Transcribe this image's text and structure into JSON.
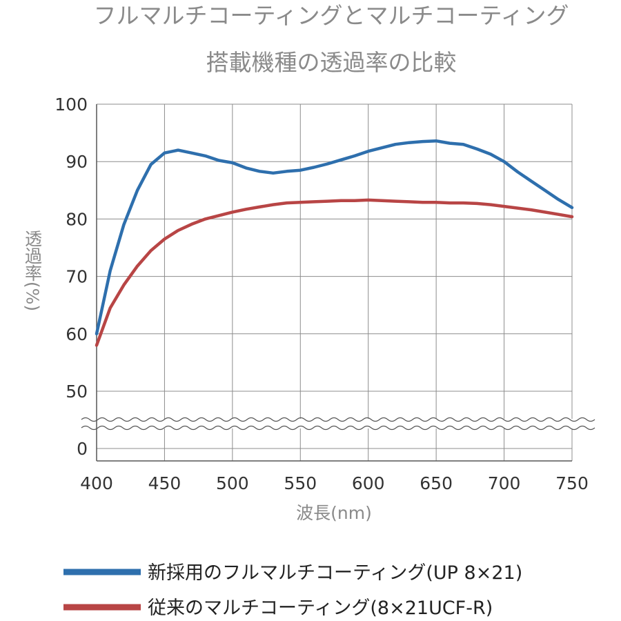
{
  "chart_data": {
    "type": "line",
    "title": "フルマルチコーティングとマルチコーティング",
    "subtitle": "搭載機種の透過率の比較",
    "xlabel": "波長(nm)",
    "ylabel": "透過率(%)",
    "xlim": [
      400,
      750
    ],
    "ylim": [
      45,
      100
    ],
    "axis_break": true,
    "grid": true,
    "legend_position": "bottom",
    "x_ticks": [
      "400",
      "450",
      "500",
      "550",
      "600",
      "650",
      "700",
      "750"
    ],
    "y_ticks": [
      "0",
      "50",
      "60",
      "70",
      "80",
      "90",
      "100"
    ],
    "x": [
      400,
      410,
      420,
      430,
      440,
      450,
      460,
      470,
      480,
      490,
      500,
      510,
      520,
      530,
      540,
      550,
      560,
      570,
      580,
      590,
      600,
      610,
      620,
      630,
      640,
      650,
      660,
      670,
      680,
      690,
      700,
      710,
      720,
      730,
      740,
      750
    ],
    "series": [
      {
        "name": "新採用のフルマルチコーティング(UP 8×21)",
        "color": "#2e6fad",
        "values": [
          60,
          71,
          79,
          85,
          89.5,
          91.5,
          92,
          91.5,
          91,
          90.2,
          89.8,
          88.9,
          88.3,
          88,
          88.3,
          88.5,
          89,
          89.6,
          90.3,
          91,
          91.8,
          92.4,
          93,
          93.3,
          93.5,
          93.6,
          93.2,
          93,
          92.2,
          91.3,
          90,
          88.2,
          86.6,
          85,
          83.4,
          82
        ]
      },
      {
        "name": "従来のマルチコーティング(8×21UCF-R)",
        "color": "#b84545",
        "values": [
          58,
          64.5,
          68.5,
          71.8,
          74.5,
          76.5,
          78,
          79.1,
          80,
          80.6,
          81.2,
          81.7,
          82.1,
          82.5,
          82.8,
          82.9,
          83,
          83.1,
          83.2,
          83.2,
          83.3,
          83.2,
          83.1,
          83,
          82.9,
          82.9,
          82.8,
          82.8,
          82.7,
          82.5,
          82.2,
          81.9,
          81.6,
          81.2,
          80.8,
          80.4
        ]
      }
    ]
  }
}
